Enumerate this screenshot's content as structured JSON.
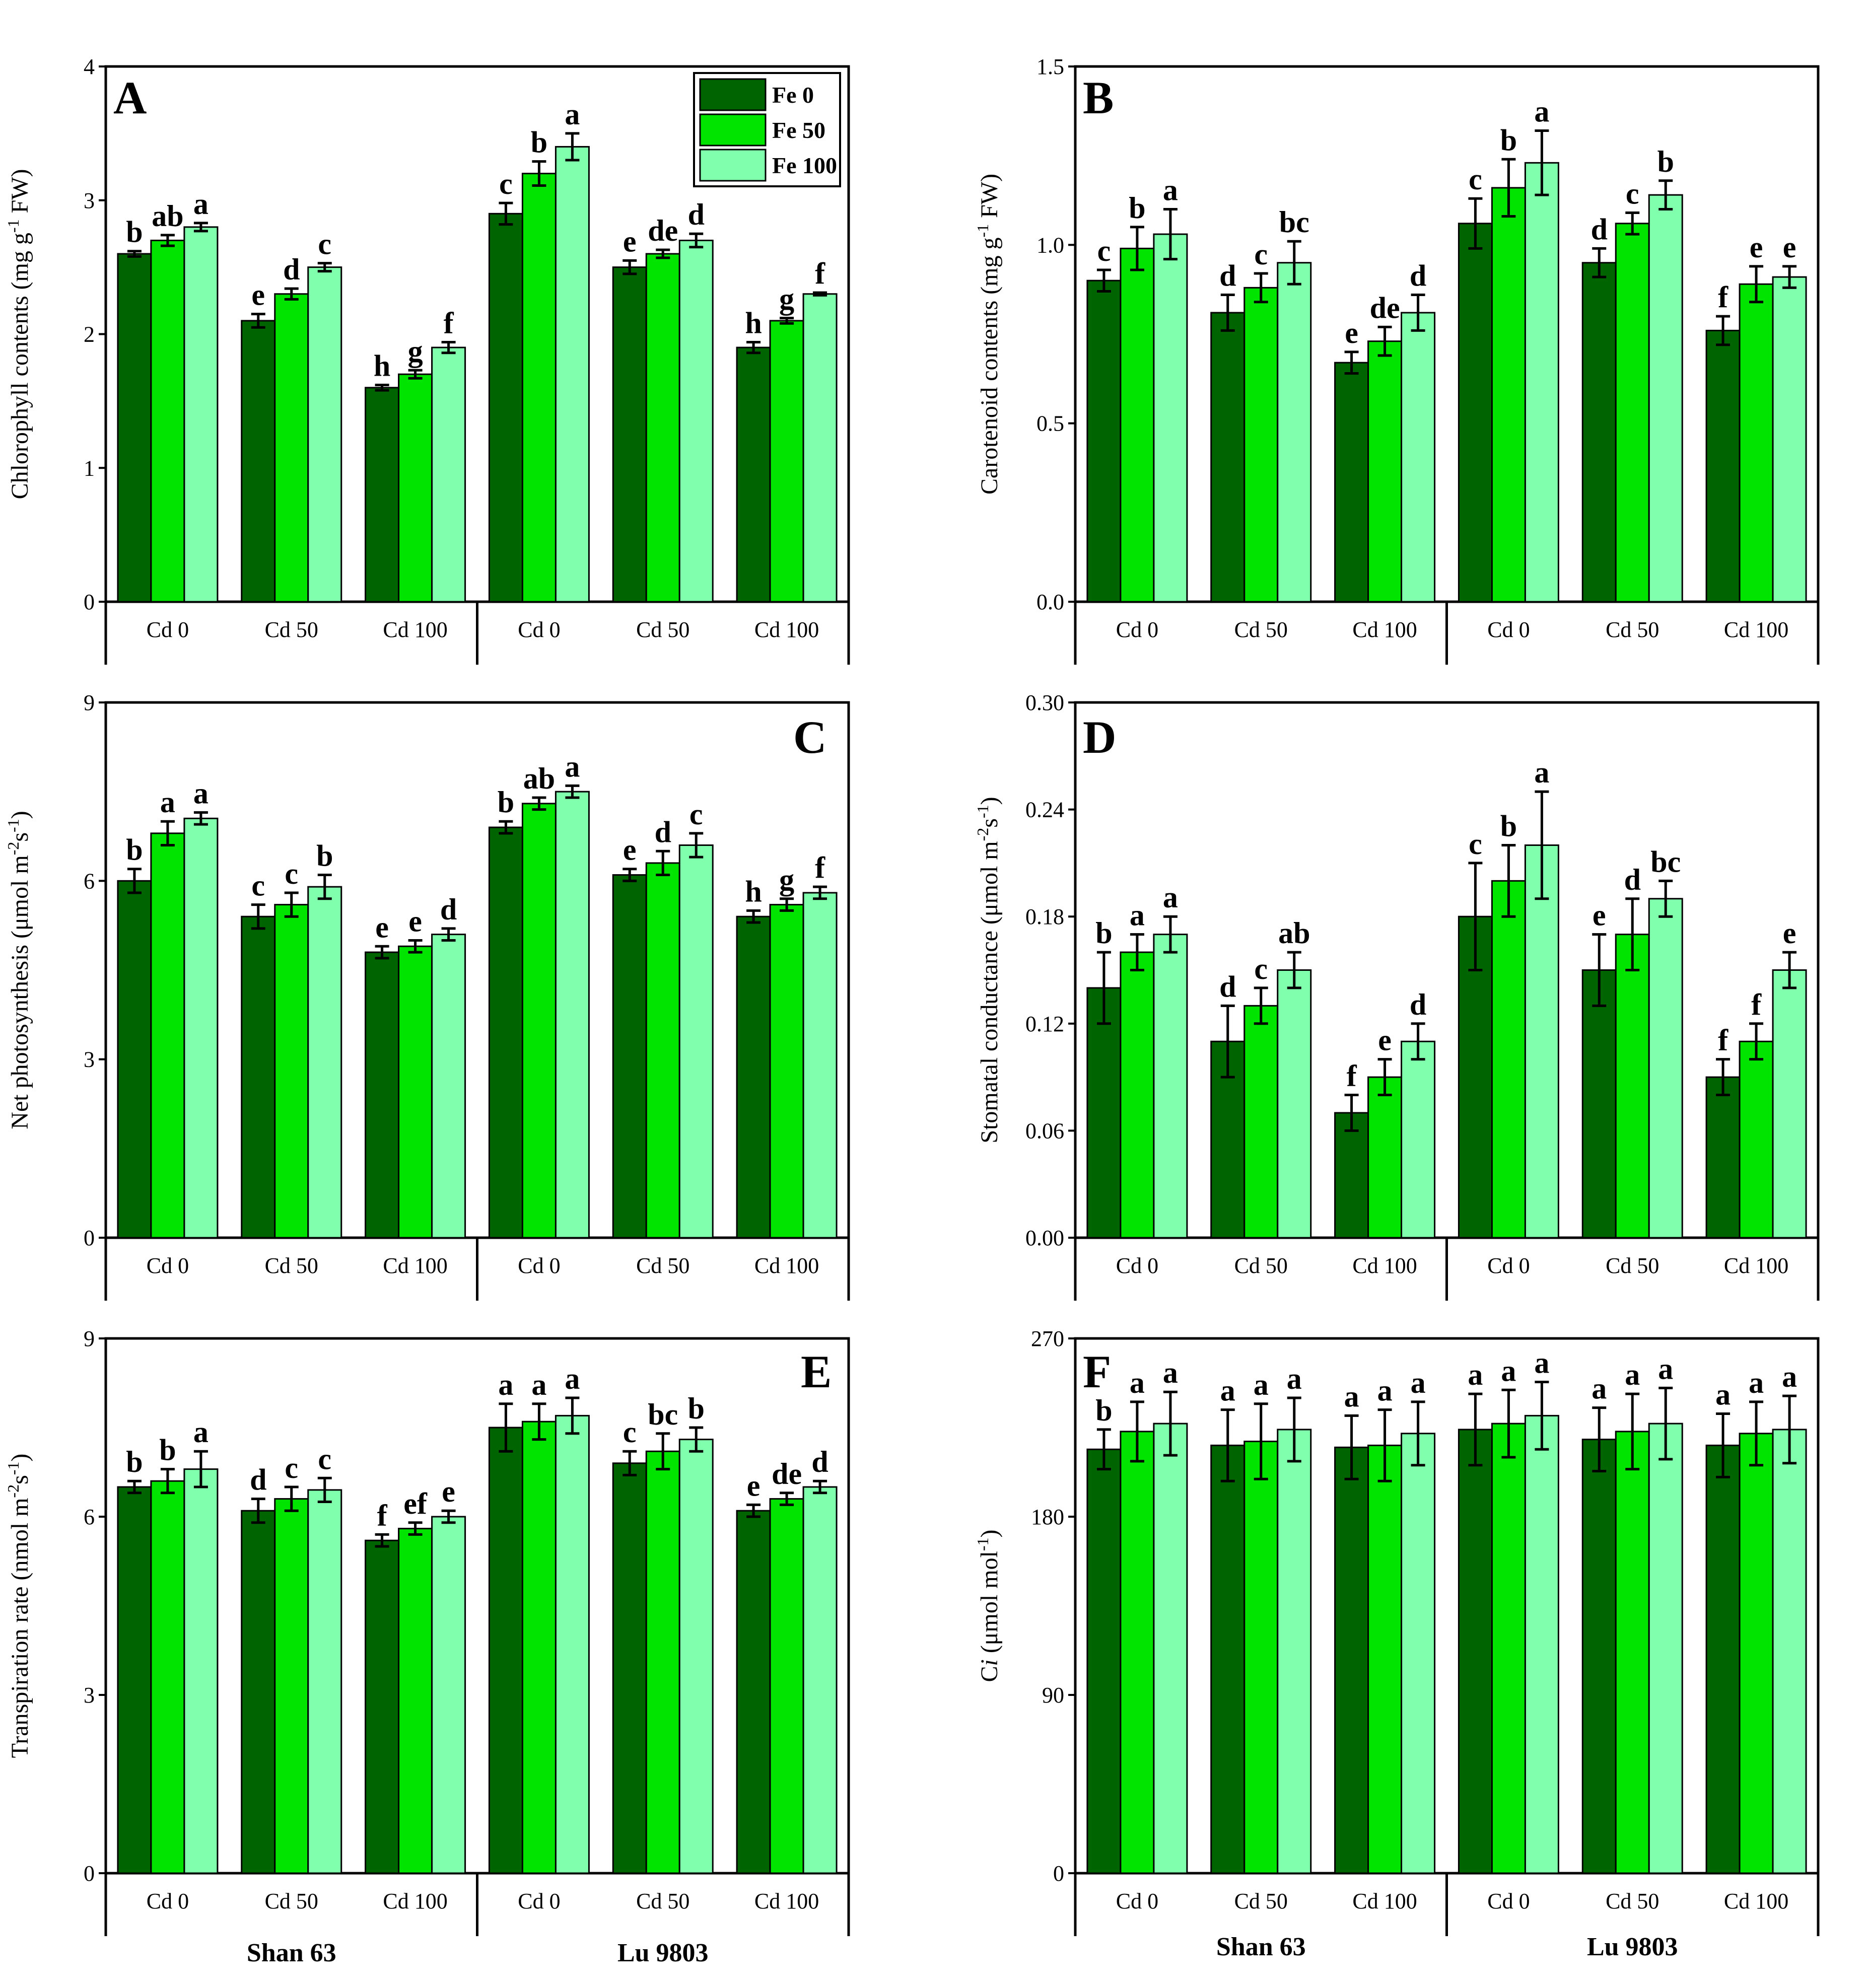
{
  "colors": {
    "fe0": "#006400",
    "fe50": "#00E400",
    "fe100": "#80FFAC"
  },
  "legend": [
    "Fe 0",
    "Fe 50",
    "Fe 100"
  ],
  "cultivars": [
    "Shan 63",
    "Lu 9803"
  ],
  "chart_data": [
    {
      "type": "bar",
      "panel": "A",
      "ylabel": [
        "Chlorophyll contents (mg g",
        "-1",
        " FW)"
      ],
      "ylim": [
        0,
        4
      ],
      "yticks": [
        "0",
        "1",
        "2",
        "3",
        "4"
      ],
      "categories": [
        "Cd 0",
        "Cd 50",
        "Cd 100",
        "Cd 0",
        "Cd 50",
        "Cd 100"
      ],
      "series": [
        {
          "name": "Fe 0",
          "values": [
            2.6,
            2.1,
            1.6,
            2.9,
            2.5,
            1.9
          ],
          "errors": [
            0.02,
            0.05,
            0.02,
            0.08,
            0.05,
            0.04
          ],
          "labels": [
            "b",
            "e",
            "h",
            "c",
            "e",
            "h"
          ]
        },
        {
          "name": "Fe 50",
          "values": [
            2.7,
            2.3,
            1.7,
            3.2,
            2.6,
            2.1
          ],
          "errors": [
            0.04,
            0.04,
            0.03,
            0.09,
            0.03,
            0.02
          ],
          "labels": [
            "ab",
            "d",
            "g",
            "b",
            "de",
            "g"
          ]
        },
        {
          "name": "Fe 100",
          "values": [
            2.8,
            2.5,
            1.9,
            3.4,
            2.7,
            2.3
          ],
          "errors": [
            0.03,
            0.03,
            0.04,
            0.1,
            0.05,
            0.01
          ],
          "labels": [
            "a",
            "c",
            "f",
            "a",
            "d",
            "f"
          ]
        }
      ]
    },
    {
      "type": "bar",
      "panel": "B",
      "ylabel": [
        "Carotenoid contents (mg g",
        "-1",
        " FW)"
      ],
      "ylim": [
        0,
        1.5
      ],
      "yticks": [
        "0.0",
        "0.5",
        "1.0",
        "1.5"
      ],
      "categories": [
        "Cd 0",
        "Cd 50",
        "Cd 100",
        "Cd 0",
        "Cd 50",
        "Cd 100"
      ],
      "series": [
        {
          "name": "Fe 0",
          "values": [
            0.9,
            0.81,
            0.67,
            1.06,
            0.95,
            0.76
          ],
          "errors": [
            0.03,
            0.05,
            0.03,
            0.07,
            0.04,
            0.04
          ],
          "labels": [
            "c",
            "d",
            "e",
            "c",
            "d",
            "f"
          ]
        },
        {
          "name": "Fe 50",
          "values": [
            0.99,
            0.88,
            0.73,
            1.16,
            1.06,
            0.89
          ],
          "errors": [
            0.06,
            0.04,
            0.04,
            0.08,
            0.03,
            0.05
          ],
          "labels": [
            "b",
            "c",
            "de",
            "b",
            "c",
            "e"
          ]
        },
        {
          "name": "Fe 100",
          "values": [
            1.03,
            0.95,
            0.81,
            1.23,
            1.14,
            0.91
          ],
          "errors": [
            0.07,
            0.06,
            0.05,
            0.09,
            0.04,
            0.03
          ],
          "labels": [
            "a",
            "bc",
            "d",
            "a",
            "b",
            "e"
          ]
        }
      ]
    },
    {
      "type": "bar",
      "panel": "C",
      "ylabel": [
        "Net photosynthesis (μmol m",
        "-2",
        "s",
        "-1",
        ")"
      ],
      "ylim": [
        0,
        9
      ],
      "yticks": [
        "0",
        "3",
        "6",
        "9"
      ],
      "categories": [
        "Cd 0",
        "Cd 50",
        "Cd 100",
        "Cd 0",
        "Cd 50",
        "Cd 100"
      ],
      "series": [
        {
          "name": "Fe 0",
          "values": [
            6.0,
            5.4,
            4.8,
            6.9,
            6.1,
            5.4
          ],
          "errors": [
            0.2,
            0.2,
            0.1,
            0.1,
            0.1,
            0.1
          ],
          "labels": [
            "b",
            "c",
            "e",
            "b",
            "e",
            "h"
          ]
        },
        {
          "name": "Fe 50",
          "values": [
            6.8,
            5.6,
            4.9,
            7.3,
            6.3,
            5.6
          ],
          "errors": [
            0.2,
            0.2,
            0.1,
            0.1,
            0.2,
            0.1
          ],
          "labels": [
            "a",
            "c",
            "e",
            "ab",
            "d",
            "g"
          ]
        },
        {
          "name": "Fe 100",
          "values": [
            7.05,
            5.9,
            5.1,
            7.5,
            6.6,
            5.8
          ],
          "errors": [
            0.1,
            0.2,
            0.1,
            0.1,
            0.2,
            0.1
          ],
          "labels": [
            "a",
            "b",
            "d",
            "a",
            "c",
            "f"
          ]
        }
      ]
    },
    {
      "type": "bar",
      "panel": "D",
      "ylabel": [
        "Stomatal conductance (μmol m",
        "-2",
        "s",
        "-1",
        ")"
      ],
      "ylim": [
        0,
        0.3
      ],
      "yticks": [
        "0.00",
        "0.06",
        "0.12",
        "0.18",
        "0.24",
        "0.30"
      ],
      "categories": [
        "Cd 0",
        "Cd 50",
        "Cd 100",
        "Cd 0",
        "Cd 50",
        "Cd 100"
      ],
      "series": [
        {
          "name": "Fe 0",
          "values": [
            0.14,
            0.11,
            0.07,
            0.18,
            0.15,
            0.09
          ],
          "errors": [
            0.02,
            0.02,
            0.01,
            0.03,
            0.02,
            0.01
          ],
          "labels": [
            "b",
            "d",
            "f",
            "c",
            "e",
            "f"
          ]
        },
        {
          "name": "Fe 50",
          "values": [
            0.16,
            0.13,
            0.09,
            0.2,
            0.17,
            0.11
          ],
          "errors": [
            0.01,
            0.01,
            0.01,
            0.02,
            0.02,
            0.01
          ],
          "labels": [
            "a",
            "c",
            "e",
            "b",
            "d",
            "f"
          ]
        },
        {
          "name": "Fe 100",
          "values": [
            0.17,
            0.15,
            0.11,
            0.22,
            0.19,
            0.15
          ],
          "errors": [
            0.01,
            0.01,
            0.01,
            0.03,
            0.01,
            0.01
          ],
          "labels": [
            "a",
            "ab",
            "d",
            "a",
            "bc",
            "e"
          ]
        }
      ]
    },
    {
      "type": "bar",
      "panel": "E",
      "ylabel": [
        "Transpiration rate (nmol m",
        "-2",
        "s",
        "-1",
        ")"
      ],
      "ylim": [
        0,
        9
      ],
      "yticks": [
        "0",
        "3",
        "6",
        "9"
      ],
      "categories": [
        "Cd 0",
        "Cd 50",
        "Cd 100",
        "Cd 0",
        "Cd 50",
        "Cd 100"
      ],
      "series": [
        {
          "name": "Fe 0",
          "values": [
            6.5,
            6.1,
            5.6,
            7.5,
            6.9,
            6.1
          ],
          "errors": [
            0.1,
            0.2,
            0.1,
            0.4,
            0.2,
            0.1
          ],
          "labels": [
            "b",
            "d",
            "f",
            "a",
            "c",
            "e"
          ]
        },
        {
          "name": "Fe 50",
          "values": [
            6.6,
            6.3,
            5.8,
            7.6,
            7.1,
            6.3
          ],
          "errors": [
            0.2,
            0.2,
            0.1,
            0.3,
            0.3,
            0.1
          ],
          "labels": [
            "b",
            "c",
            "ef",
            "a",
            "bc",
            "de"
          ]
        },
        {
          "name": "Fe 100",
          "values": [
            6.8,
            6.45,
            6.0,
            7.7,
            7.3,
            6.5
          ],
          "errors": [
            0.3,
            0.2,
            0.1,
            0.3,
            0.2,
            0.1
          ],
          "labels": [
            "a",
            "c",
            "e",
            "a",
            "b",
            "d"
          ]
        }
      ]
    },
    {
      "type": "bar",
      "panel": "F",
      "ylabel": [
        "C",
        "i",
        " (μmol mol",
        "-1",
        ")"
      ],
      "ylim": [
        0,
        270
      ],
      "yticks": [
        "0",
        "90",
        "180",
        "270"
      ],
      "categories": [
        "Cd 0",
        "Cd 50",
        "Cd 100",
        "Cd 0",
        "Cd 50",
        "Cd 100"
      ],
      "series": [
        {
          "name": "Fe 0",
          "values": [
            214,
            216,
            215,
            224,
            219,
            216
          ],
          "errors": [
            10,
            18,
            16,
            18,
            16,
            16
          ],
          "labels": [
            "b",
            "a",
            "a",
            "a",
            "a",
            "a"
          ]
        },
        {
          "name": "Fe 50",
          "values": [
            223,
            218,
            216,
            227,
            223,
            222
          ],
          "errors": [
            15,
            19,
            18,
            17,
            19,
            16
          ],
          "labels": [
            "a",
            "a",
            "a",
            "a",
            "a",
            "a"
          ]
        },
        {
          "name": "Fe 100",
          "values": [
            227,
            224,
            222,
            231,
            227,
            224
          ],
          "errors": [
            16,
            16,
            16,
            17,
            18,
            17
          ],
          "labels": [
            "a",
            "a",
            "a",
            "a",
            "a",
            "a"
          ]
        }
      ]
    }
  ]
}
